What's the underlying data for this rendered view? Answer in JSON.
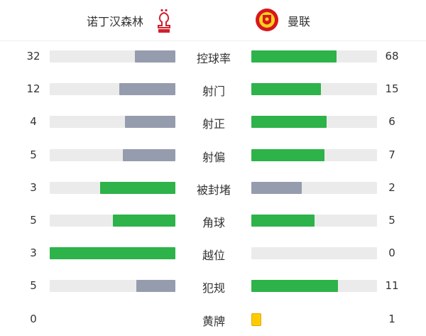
{
  "home": {
    "name": "诺丁汉森林",
    "logo": "nottingham-forest-crest"
  },
  "away": {
    "name": "曼联",
    "logo": "manchester-united-crest"
  },
  "colors": {
    "leader": "#2db34a",
    "trailer": "#959cad",
    "track": "#ebebeb",
    "yellow_card": "#fecb00"
  },
  "stats": [
    {
      "label": "控球率",
      "home": "32",
      "away": "68"
    },
    {
      "label": "射门",
      "home": "12",
      "away": "15"
    },
    {
      "label": "射正",
      "home": "4",
      "away": "6"
    },
    {
      "label": "射偏",
      "home": "5",
      "away": "7"
    },
    {
      "label": "被封堵",
      "home": "3",
      "away": "2"
    },
    {
      "label": "角球",
      "home": "5",
      "away": "5"
    },
    {
      "label": "越位",
      "home": "3",
      "away": "0"
    },
    {
      "label": "犯规",
      "home": "5",
      "away": "11"
    },
    {
      "label": "黄牌",
      "home": "0",
      "away": "1",
      "type": "card"
    }
  ]
}
